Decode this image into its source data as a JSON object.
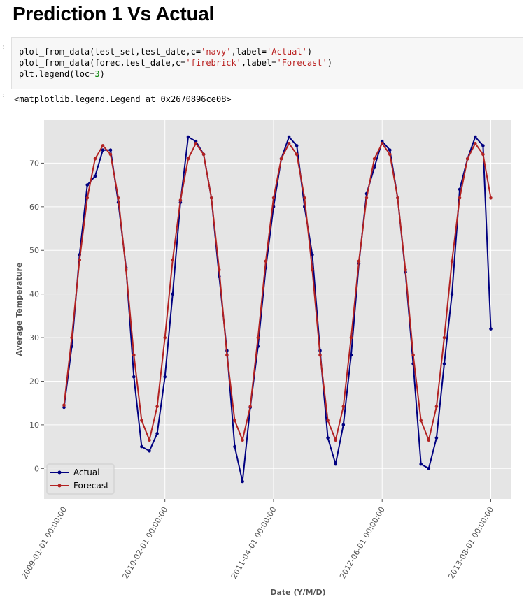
{
  "heading": "Prediction 1 Vs Actual",
  "code_lines": [
    "plot_from_data(test_set,test_date,c='navy',label='Actual')",
    "plot_from_data(forec,test_date,c='firebrick',label='Forecast')",
    "plt.legend(loc=3)"
  ],
  "output_text": "<matplotlib.legend.Legend at 0x2670896ce08>",
  "colors": {
    "actual": "#000080",
    "forecast": "#b22222",
    "plot_bg": "#e5e5e5"
  },
  "chart_data": {
    "type": "line",
    "xlabel": "Date (Y/M/D)",
    "ylabel": "Average Temperature",
    "ylim": [
      -7,
      80
    ],
    "yticks": [
      0,
      10,
      20,
      30,
      40,
      50,
      60,
      70
    ],
    "start_month": "2009-01",
    "xticks": [
      "2009-01-01 00:00:00",
      "2010-02-01 00:00:00",
      "2011-04-01 00:00:00",
      "2012-06-01 00:00:00",
      "2013-08-01 00:00:00"
    ],
    "xtick_index": [
      0,
      13,
      27,
      41,
      55
    ],
    "grid": true,
    "legend_position": "bottom-left",
    "series": [
      {
        "name": "Actual",
        "color": "#000080",
        "values": [
          14,
          28,
          49,
          65,
          67,
          73,
          73,
          61,
          46,
          21,
          5,
          4,
          8,
          21,
          40,
          61,
          76,
          75,
          72,
          62,
          44,
          27,
          5,
          -3,
          14,
          28,
          46,
          60,
          71,
          76,
          74,
          60,
          49,
          27,
          7,
          1,
          10,
          26,
          47,
          63,
          69,
          75,
          73,
          62,
          45,
          24,
          1,
          0,
          7,
          24,
          40,
          64,
          71,
          76,
          74,
          32
        ]
      },
      {
        "name": "Forecast",
        "color": "#b22222",
        "values": [
          14.5,
          30,
          47.8,
          62,
          71,
          74,
          72,
          62,
          45.5,
          26,
          11,
          6.5,
          14.2,
          30,
          47.8,
          61.5,
          71,
          74.5,
          72,
          62,
          45.5,
          26,
          11,
          6.5,
          14.2,
          30,
          47.5,
          62,
          71,
          74.5,
          72,
          62,
          45.5,
          26,
          11,
          6.5,
          14.2,
          30,
          47.5,
          62,
          71,
          74.5,
          72,
          62,
          45.5,
          26,
          11,
          6.5,
          14.2,
          30,
          47.5,
          62,
          71,
          74.5,
          72,
          62
        ]
      }
    ]
  }
}
